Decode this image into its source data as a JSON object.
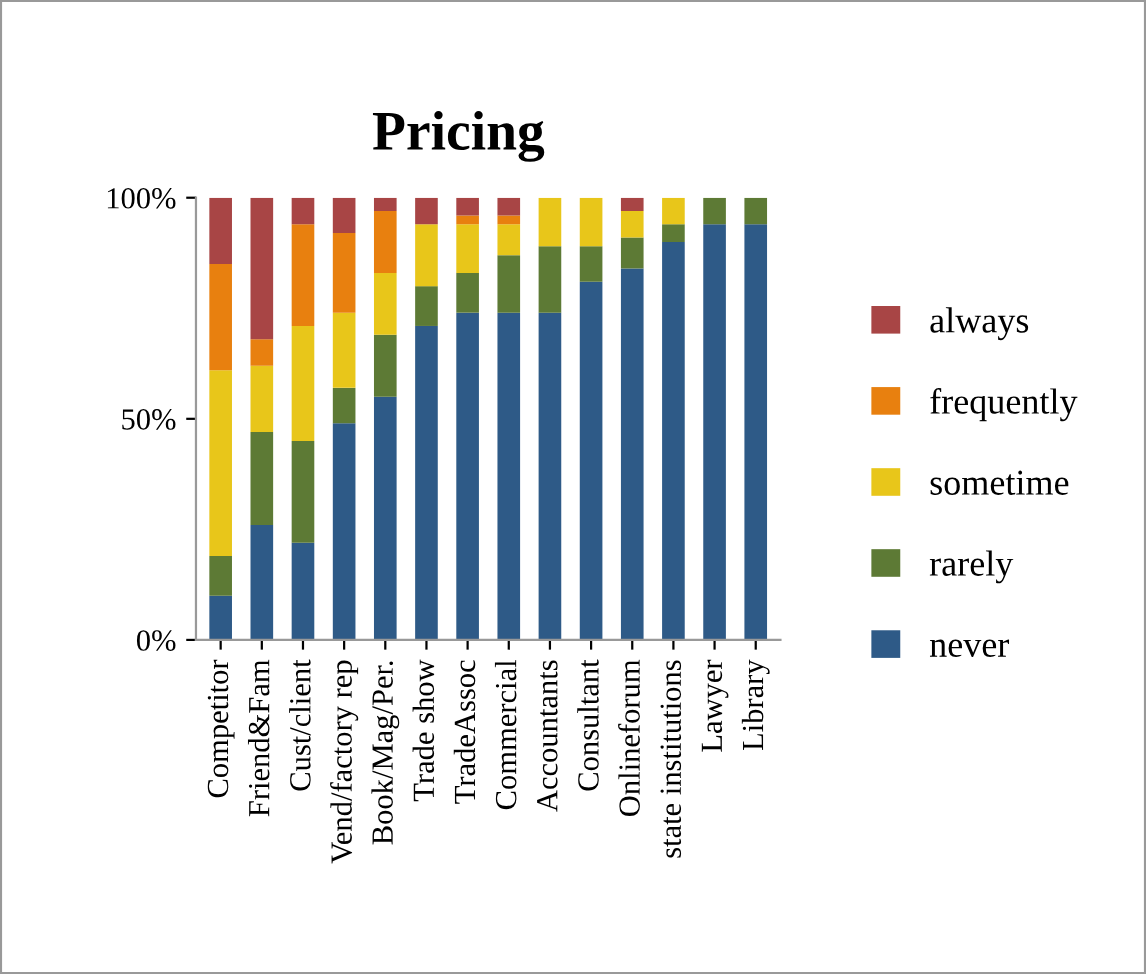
{
  "chart_data": {
    "type": "bar",
    "title": "Pricing",
    "stacked": true,
    "categories": [
      "Competitor",
      "Friend&Fam",
      "Cust/client",
      "Vend/factory rep",
      "Book/Mag/Per.",
      "Trade show",
      "TradeAssoc",
      "Commercial",
      "Accountants",
      "Consultant",
      "Onlineforum",
      "state institutions",
      "Lawyer",
      "Library"
    ],
    "series": [
      {
        "name": "never",
        "color": "#2e5a87",
        "values": [
          10,
          26,
          22,
          49,
          55,
          71,
          74,
          74,
          74,
          81,
          84,
          90,
          94,
          94
        ]
      },
      {
        "name": "rarely",
        "color": "#5d7a35",
        "values": [
          9,
          21,
          23,
          8,
          14,
          9,
          9,
          13,
          15,
          8,
          7,
          4,
          6,
          6
        ]
      },
      {
        "name": "sometime",
        "color": "#e8c61a",
        "values": [
          42,
          15,
          26,
          17,
          14,
          14,
          11,
          7,
          11,
          11,
          6,
          6,
          0,
          0
        ]
      },
      {
        "name": "frequently",
        "color": "#e8800f",
        "values": [
          24,
          6,
          23,
          18,
          14,
          0,
          2,
          2,
          0,
          0,
          0,
          0,
          0,
          0
        ]
      },
      {
        "name": "always",
        "color": "#a84545",
        "values": [
          15,
          32,
          6,
          8,
          3,
          6,
          4,
          4,
          0,
          0,
          3,
          0,
          0,
          0
        ]
      }
    ],
    "ylim": [
      0,
      100
    ],
    "yticks": [
      {
        "value": 0,
        "label": "0%"
      },
      {
        "value": 50,
        "label": "50%"
      },
      {
        "value": 100,
        "label": "100%"
      }
    ],
    "grid": false,
    "legend": "right"
  }
}
